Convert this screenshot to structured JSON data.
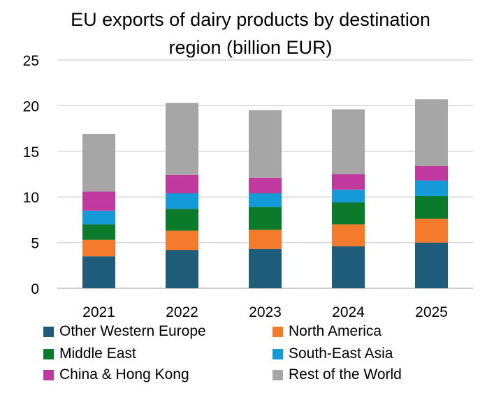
{
  "chart_data": {
    "type": "bar",
    "stacked": true,
    "title_lines": [
      "EU exports of dairy products by destination",
      "region (billion EUR)"
    ],
    "categories": [
      "2021",
      "2022",
      "2023",
      "2024",
      "2025"
    ],
    "ylim": [
      0,
      25
    ],
    "yticks": [
      "0",
      "5",
      "10",
      "15",
      "20",
      "25"
    ],
    "grid": true,
    "legend_position": "bottom",
    "series": [
      {
        "name": "Other Western Europe",
        "color": "#1F5C7A",
        "values": [
          3.5,
          4.2,
          4.3,
          4.6,
          5.0
        ]
      },
      {
        "name": "North America",
        "color": "#F47A2C",
        "values": [
          1.8,
          2.1,
          2.1,
          2.4,
          2.6
        ]
      },
      {
        "name": "Middle East",
        "color": "#0B7A2A",
        "values": [
          1.7,
          2.4,
          2.5,
          2.4,
          2.5
        ]
      },
      {
        "name": "South-East Asia",
        "color": "#149AD8",
        "values": [
          1.5,
          1.7,
          1.5,
          1.4,
          1.7
        ]
      },
      {
        "name": "China & Hong Kong",
        "color": "#C0399E",
        "values": [
          2.1,
          2.0,
          1.7,
          1.7,
          1.6
        ]
      },
      {
        "name": "Rest of the World",
        "color": "#A6A6A6",
        "values": [
          6.3,
          7.9,
          7.4,
          7.1,
          7.3
        ]
      }
    ]
  }
}
